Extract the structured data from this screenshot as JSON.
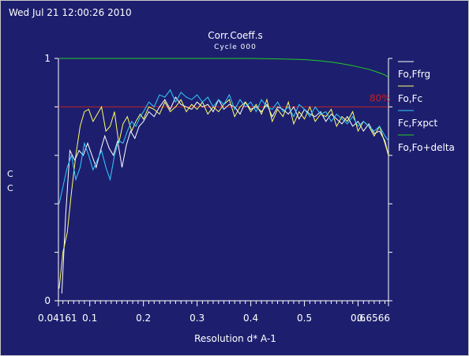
{
  "header": {
    "timestamp": "Wed Jul 21 12:00:26 2010"
  },
  "chart_data": {
    "type": "line",
    "title": "Corr.Coeff.s",
    "subtitle": "Cycle 000",
    "xlabel": "Resolution d* A-1",
    "ylabel": "C C",
    "xlim": [
      0.04161,
      0.6566
    ],
    "ylim": [
      0,
      1
    ],
    "x_tick_labels": [
      "0.04161",
      "0.1",
      "0.2",
      "0.3",
      "0.4",
      "0.5",
      "0.6",
      "0.6566"
    ],
    "x_tick_values": [
      0.04161,
      0.1,
      0.2,
      0.3,
      0.4,
      0.5,
      0.6,
      0.6566
    ],
    "y_tick_labels": [
      "0",
      "1"
    ],
    "y_tick_values": [
      0,
      1
    ],
    "reference_line": {
      "y": 0.8,
      "label": "80%",
      "color": "#c81e1e"
    },
    "legend_position": "right",
    "series": [
      {
        "name": "Fo,Ffrg",
        "color": "#ffffff",
        "x": [
          0.048,
          0.055,
          0.063,
          0.072,
          0.08,
          0.088,
          0.096,
          0.104,
          0.112,
          0.12,
          0.128,
          0.136,
          0.144,
          0.152,
          0.16,
          0.168,
          0.176,
          0.184,
          0.192,
          0.2,
          0.21,
          0.22,
          0.23,
          0.24,
          0.25,
          0.26,
          0.27,
          0.28,
          0.29,
          0.3,
          0.31,
          0.32,
          0.33,
          0.34,
          0.35,
          0.36,
          0.37,
          0.38,
          0.39,
          0.4,
          0.41,
          0.42,
          0.43,
          0.44,
          0.45,
          0.46,
          0.47,
          0.48,
          0.49,
          0.5,
          0.51,
          0.52,
          0.53,
          0.54,
          0.55,
          0.56,
          0.57,
          0.58,
          0.59,
          0.6,
          0.61,
          0.62,
          0.63,
          0.64,
          0.65,
          0.6566
        ],
        "y": [
          0.03,
          0.35,
          0.62,
          0.58,
          0.62,
          0.6,
          0.65,
          0.6,
          0.55,
          0.62,
          0.68,
          0.63,
          0.6,
          0.66,
          0.55,
          0.64,
          0.7,
          0.67,
          0.72,
          0.74,
          0.78,
          0.76,
          0.8,
          0.83,
          0.79,
          0.84,
          0.81,
          0.8,
          0.79,
          0.82,
          0.8,
          0.81,
          0.78,
          0.83,
          0.79,
          0.81,
          0.8,
          0.77,
          0.82,
          0.79,
          0.8,
          0.78,
          0.81,
          0.76,
          0.8,
          0.79,
          0.77,
          0.8,
          0.75,
          0.79,
          0.77,
          0.76,
          0.78,
          0.74,
          0.77,
          0.75,
          0.73,
          0.76,
          0.72,
          0.74,
          0.7,
          0.73,
          0.69,
          0.7,
          0.66,
          0.6
        ]
      },
      {
        "name": "Fo,Fc",
        "color": "#ffff66",
        "x": [
          0.043,
          0.05,
          0.058,
          0.066,
          0.074,
          0.082,
          0.09,
          0.098,
          0.106,
          0.114,
          0.122,
          0.13,
          0.138,
          0.146,
          0.154,
          0.162,
          0.17,
          0.178,
          0.186,
          0.194,
          0.2,
          0.21,
          0.22,
          0.23,
          0.24,
          0.25,
          0.26,
          0.27,
          0.28,
          0.29,
          0.3,
          0.31,
          0.32,
          0.33,
          0.34,
          0.35,
          0.36,
          0.37,
          0.38,
          0.39,
          0.4,
          0.41,
          0.42,
          0.43,
          0.44,
          0.45,
          0.46,
          0.47,
          0.48,
          0.49,
          0.5,
          0.51,
          0.52,
          0.53,
          0.54,
          0.55,
          0.56,
          0.57,
          0.58,
          0.59,
          0.6,
          0.61,
          0.62,
          0.63,
          0.64,
          0.65,
          0.6566
        ],
        "y": [
          0.05,
          0.2,
          0.28,
          0.45,
          0.6,
          0.72,
          0.78,
          0.79,
          0.74,
          0.77,
          0.8,
          0.7,
          0.72,
          0.78,
          0.65,
          0.73,
          0.76,
          0.7,
          0.74,
          0.77,
          0.75,
          0.8,
          0.79,
          0.77,
          0.82,
          0.78,
          0.8,
          0.83,
          0.78,
          0.81,
          0.79,
          0.82,
          0.77,
          0.8,
          0.78,
          0.81,
          0.83,
          0.76,
          0.8,
          0.82,
          0.78,
          0.81,
          0.77,
          0.83,
          0.74,
          0.79,
          0.76,
          0.82,
          0.73,
          0.78,
          0.75,
          0.8,
          0.74,
          0.77,
          0.76,
          0.79,
          0.72,
          0.76,
          0.74,
          0.78,
          0.7,
          0.74,
          0.72,
          0.68,
          0.72,
          0.65,
          0.6
        ]
      },
      {
        "name": "Fc,Fxpct",
        "color": "#33ccff",
        "x": [
          0.043,
          0.05,
          0.058,
          0.066,
          0.074,
          0.082,
          0.09,
          0.098,
          0.106,
          0.114,
          0.122,
          0.13,
          0.138,
          0.146,
          0.154,
          0.162,
          0.17,
          0.178,
          0.186,
          0.194,
          0.2,
          0.21,
          0.22,
          0.23,
          0.24,
          0.25,
          0.26,
          0.27,
          0.28,
          0.29,
          0.3,
          0.31,
          0.32,
          0.33,
          0.34,
          0.35,
          0.36,
          0.37,
          0.38,
          0.39,
          0.4,
          0.41,
          0.42,
          0.43,
          0.44,
          0.45,
          0.46,
          0.47,
          0.48,
          0.49,
          0.5,
          0.51,
          0.52,
          0.53,
          0.54,
          0.55,
          0.56,
          0.57,
          0.58,
          0.59,
          0.6,
          0.61,
          0.62,
          0.63,
          0.64,
          0.65,
          0.6566
        ],
        "y": [
          0.4,
          0.47,
          0.55,
          0.6,
          0.5,
          0.55,
          0.65,
          0.6,
          0.54,
          0.58,
          0.62,
          0.55,
          0.5,
          0.6,
          0.66,
          0.65,
          0.7,
          0.74,
          0.72,
          0.76,
          0.78,
          0.82,
          0.8,
          0.85,
          0.84,
          0.87,
          0.82,
          0.86,
          0.84,
          0.83,
          0.85,
          0.82,
          0.84,
          0.8,
          0.83,
          0.81,
          0.85,
          0.79,
          0.83,
          0.8,
          0.82,
          0.78,
          0.83,
          0.8,
          0.79,
          0.82,
          0.78,
          0.8,
          0.76,
          0.81,
          0.79,
          0.76,
          0.8,
          0.77,
          0.78,
          0.74,
          0.77,
          0.75,
          0.73,
          0.76,
          0.72,
          0.74,
          0.72,
          0.7,
          0.72,
          0.68,
          0.66
        ]
      },
      {
        "name": "Fo,Fo+delta",
        "color": "#22cc22",
        "x": [
          0.043,
          0.1,
          0.15,
          0.2,
          0.25,
          0.3,
          0.35,
          0.4,
          0.45,
          0.5,
          0.53,
          0.55,
          0.57,
          0.59,
          0.61,
          0.62,
          0.63,
          0.64,
          0.65,
          0.6566
        ],
        "y": [
          1.0,
          1.0,
          1.0,
          1.0,
          1.0,
          1.0,
          1.0,
          1.0,
          0.998,
          0.995,
          0.99,
          0.985,
          0.978,
          0.97,
          0.96,
          0.955,
          0.948,
          0.94,
          0.932,
          0.922
        ]
      }
    ]
  }
}
